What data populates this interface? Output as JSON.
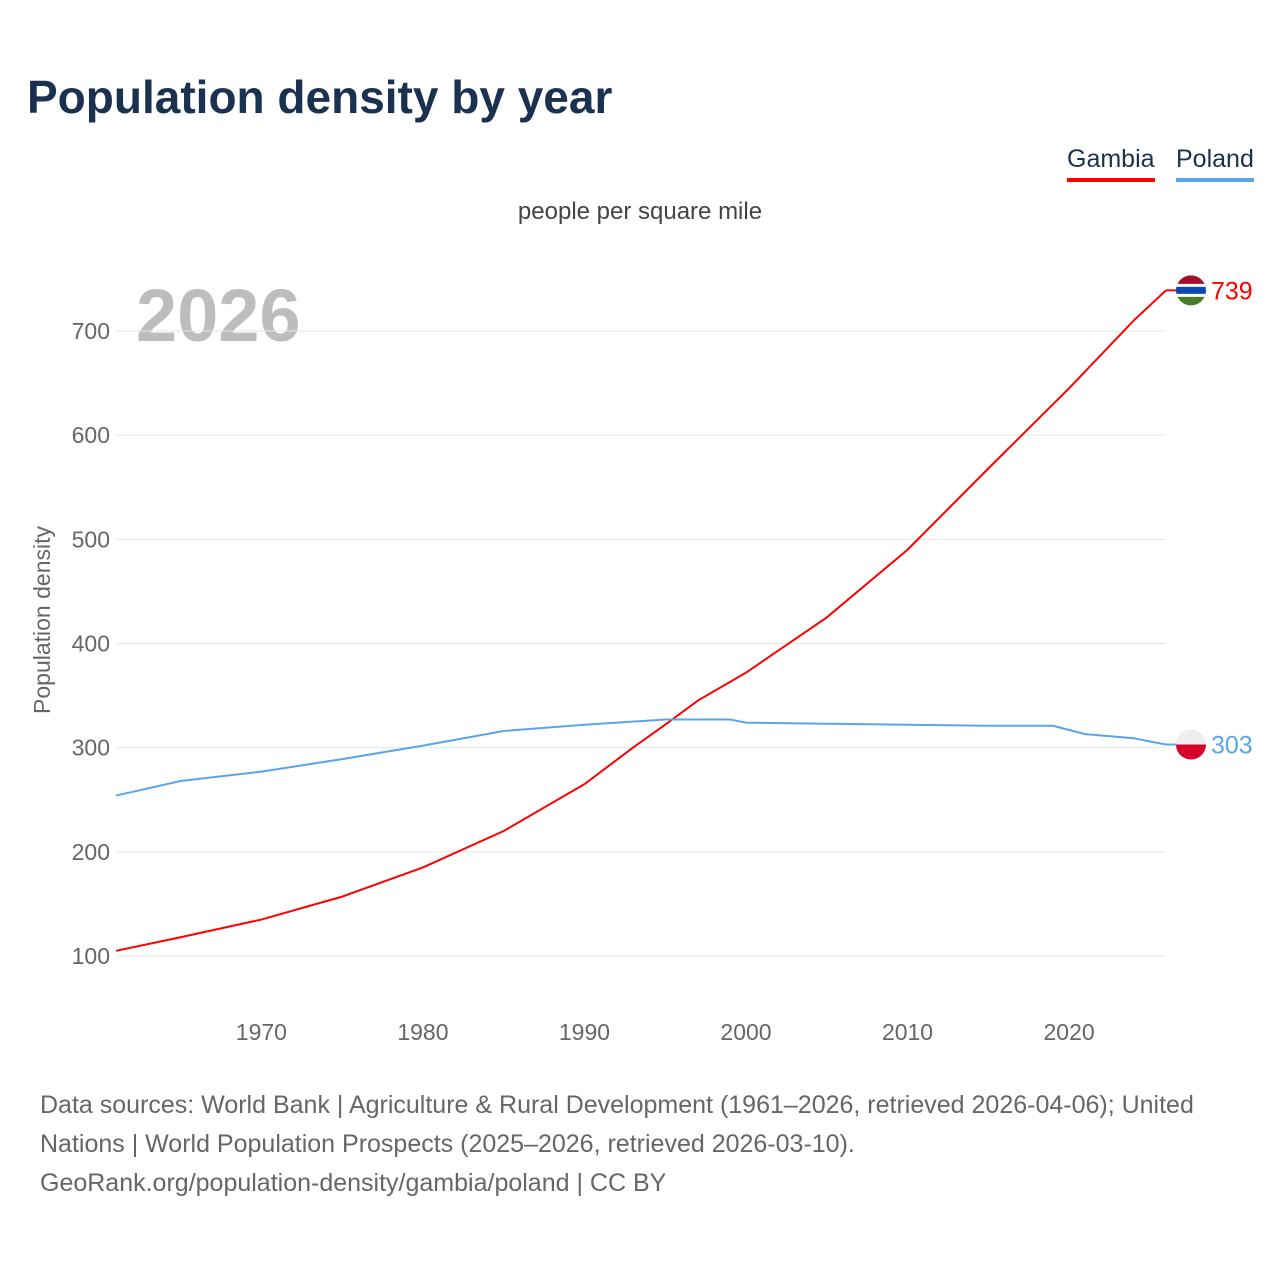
{
  "chart_data": {
    "type": "line",
    "title": "Population density by year",
    "subtitle": "people per square mile",
    "ylabel": "Population density",
    "xlabel": "",
    "year_label": "2026",
    "ylim": [
      50,
      750
    ],
    "xlim": [
      1961,
      2026
    ],
    "yticks": [
      100,
      200,
      300,
      400,
      500,
      600,
      700
    ],
    "xticks": [
      1970,
      1980,
      1990,
      2000,
      2010,
      2020
    ],
    "grid": true,
    "legend_position": "top-right",
    "series": [
      {
        "name": "Gambia",
        "color": "#ff0000",
        "end_label": "739",
        "x": [
          1961,
          1965,
          1970,
          1975,
          1980,
          1985,
          1990,
          1993,
          1995,
          1997,
          2000,
          2005,
          2010,
          2015,
          2020,
          2024,
          2026
        ],
        "y": [
          105,
          118,
          135,
          157,
          185,
          220,
          265,
          300,
          322,
          345,
          372,
          425,
          490,
          568,
          645,
          710,
          739
        ]
      },
      {
        "name": "Poland",
        "color": "#5aa5ea",
        "end_label": "303",
        "x": [
          1961,
          1965,
          1970,
          1975,
          1980,
          1985,
          1990,
          1995,
          1999,
          2000,
          2005,
          2010,
          2015,
          2019,
          2021,
          2024,
          2026
        ],
        "y": [
          254,
          268,
          277,
          289,
          302,
          316,
          322,
          327,
          327,
          324,
          323,
          322,
          321,
          321,
          313,
          309,
          303
        ]
      }
    ]
  },
  "footer": {
    "line1": "Data sources: World Bank | Agriculture & Rural Development (1961–2026, retrieved 2026-04-06); United Nations | World Population Prospects (2025–2026, retrieved 2026-03-10).",
    "line2": "GeoRank.org/population-density/gambia/poland | CC BY"
  }
}
